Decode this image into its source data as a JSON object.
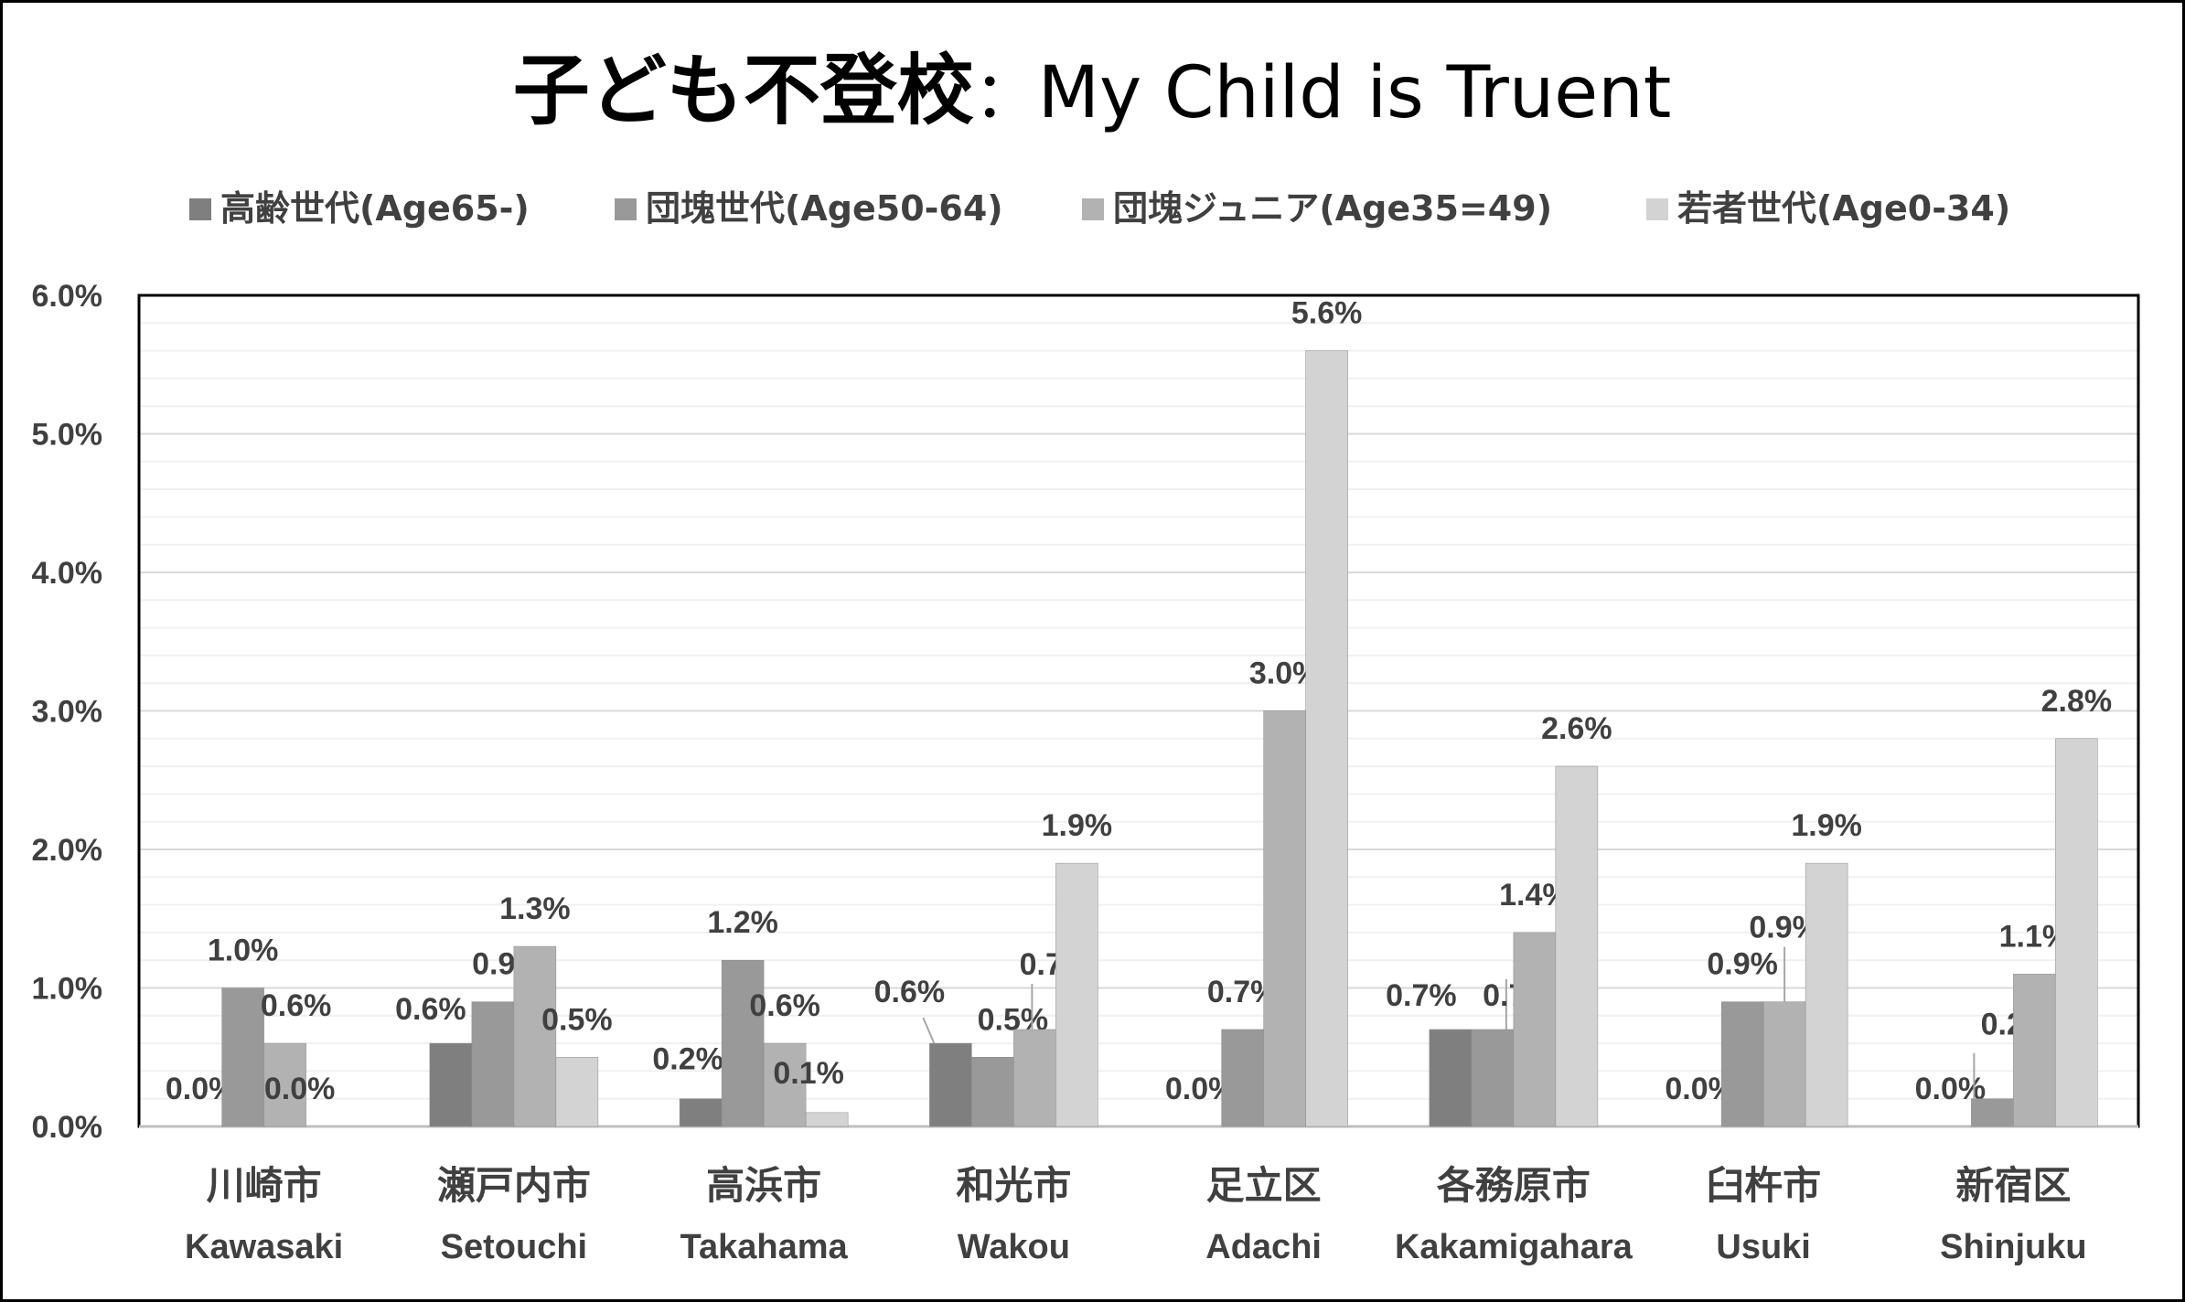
{
  "chart_data": {
    "type": "bar",
    "title": "子ども不登校",
    "title_separator": "：",
    "subtitle": "My Child is Truent",
    "legend_position": "top",
    "grid": true,
    "ylim": [
      0,
      6
    ],
    "yticks": [
      "0.0%",
      "1.0%",
      "2.0%",
      "3.0%",
      "4.0%",
      "5.0%",
      "6.0%"
    ],
    "categories": [
      {
        "jp": "川崎市",
        "en": "Kawasaki"
      },
      {
        "jp": "瀬戸内市",
        "en": "Setouchi"
      },
      {
        "jp": "高浜市",
        "en": "Takahama"
      },
      {
        "jp": "和光市",
        "en": "Wakou"
      },
      {
        "jp": "足立区",
        "en": "Adachi"
      },
      {
        "jp": "各務原市",
        "en": "Kakamigahara"
      },
      {
        "jp": "臼杵市",
        "en": "Usuki"
      },
      {
        "jp": "新宿区",
        "en": "Shinjuku"
      }
    ],
    "series": [
      {
        "name": "高齢世代(Age65-)",
        "color": "#7f7f7f",
        "values": [
          0.0,
          0.6,
          0.2,
          0.6,
          0.0,
          0.7,
          0.0,
          0.0
        ],
        "labels": [
          "0.0%",
          "0.6%",
          "0.2%",
          "0.6%",
          "0.0%",
          "0.7%",
          "0.0%",
          "0.0%"
        ]
      },
      {
        "name": "団塊世代(Age50-64)",
        "color": "#999999",
        "values": [
          1.0,
          0.9,
          1.2,
          0.5,
          0.7,
          0.7,
          0.9,
          0.2
        ],
        "labels": [
          "1.0%",
          "0.9%",
          "1.2%",
          "0.5%",
          "0.7%",
          "0.7%",
          "0.9%",
          "0.2%"
        ]
      },
      {
        "name": "団塊ジュニア(Age35=49)",
        "color": "#b2b2b2",
        "values": [
          0.6,
          1.3,
          0.6,
          0.7,
          3.0,
          1.4,
          0.9,
          1.1
        ],
        "labels": [
          "0.6%",
          "1.3%",
          "0.6%",
          "0.7%",
          "3.0%",
          "1.4%",
          "0.9%",
          "1.1%"
        ]
      },
      {
        "name": "若者世代(Age0-34)",
        "color": "#d3d3d3",
        "values": [
          0.0,
          0.5,
          0.1,
          1.9,
          5.6,
          2.6,
          1.9,
          2.8
        ],
        "labels": [
          "0.0%",
          "0.5%",
          "0.1%",
          "1.9%",
          "5.6%",
          "2.6%",
          "1.9%",
          "2.8%"
        ]
      }
    ]
  }
}
